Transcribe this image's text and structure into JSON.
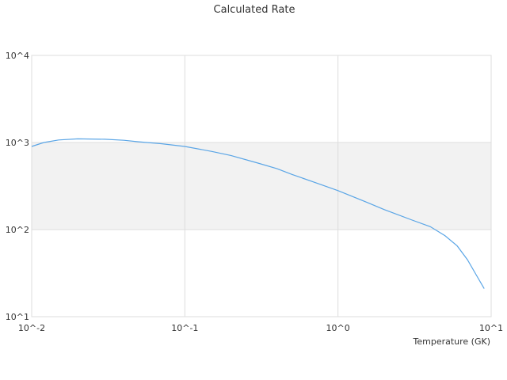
{
  "chart_data": {
    "type": "line",
    "title": "Calculated Rate",
    "xlabel": "Temperature (GK)",
    "ylabel": "",
    "x_scale": "log",
    "y_scale": "log",
    "xlim": [
      0.01,
      10
    ],
    "ylim": [
      10,
      10000
    ],
    "x_ticks": [
      "10^-2",
      "10^-1",
      "10^0",
      "10^1"
    ],
    "y_ticks": [
      "10^1",
      "10^2",
      "10^3",
      "10^4"
    ],
    "grid": true,
    "legend": "none",
    "shaded_band": [
      100,
      1000
    ],
    "colors": {
      "line": "#5aa5e6",
      "band": "#f2f2f2",
      "grid": "#dddddd"
    },
    "series": [
      {
        "x": [
          0.01,
          0.012,
          0.015,
          0.02,
          0.03,
          0.04,
          0.05,
          0.07,
          0.1,
          0.15,
          0.2,
          0.3,
          0.4,
          0.5,
          0.7,
          1.0,
          1.5,
          2.0,
          3.0,
          4.0,
          5.0,
          6.0,
          7.0,
          8.0,
          9.0
        ],
        "y": [
          900,
          1000,
          1070,
          1100,
          1090,
          1060,
          1020,
          970,
          900,
          790,
          710,
          580,
          500,
          430,
          350,
          280,
          210,
          170,
          130,
          108,
          85,
          65,
          45,
          30,
          21
        ]
      }
    ]
  }
}
